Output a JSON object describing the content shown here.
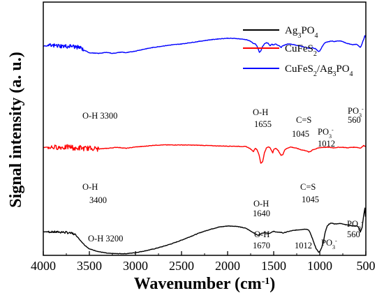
{
  "chart_data": {
    "type": "line",
    "xlabel": "Wavenumber",
    "xlabel_unit": "(cm",
    "xlabel_unit_sup": "-1",
    "xlabel_unit_close": ")",
    "ylabel": "Signal intensity  (a. u.)",
    "xlim": [
      4000,
      500
    ],
    "x_ticks": [
      4000,
      3500,
      3000,
      2500,
      2000,
      1500,
      1000,
      500
    ],
    "y_ticks_shown": false,
    "grid": false,
    "legend_position": "top-right",
    "series": [
      {
        "name": "Ag3PO4",
        "color": "#000000",
        "points": [
          [
            4000,
            0.5
          ],
          [
            3800,
            0.498
          ],
          [
            3700,
            0.492
          ],
          [
            3650,
            0.482
          ],
          [
            3600,
            0.45
          ],
          [
            3550,
            0.42
          ],
          [
            3500,
            0.398
          ],
          [
            3400,
            0.382
          ],
          [
            3300,
            0.372
          ],
          [
            3200,
            0.37
          ],
          [
            3100,
            0.37
          ],
          [
            3000,
            0.376
          ],
          [
            2900,
            0.386
          ],
          [
            2800,
            0.398
          ],
          [
            2700,
            0.413
          ],
          [
            2600,
            0.43
          ],
          [
            2500,
            0.45
          ],
          [
            2400,
            0.472
          ],
          [
            2300,
            0.494
          ],
          [
            2200,
            0.512
          ],
          [
            2100,
            0.527
          ],
          [
            2000,
            0.534
          ],
          [
            1900,
            0.532
          ],
          [
            1850,
            0.526
          ],
          [
            1800,
            0.52
          ],
          [
            1750,
            0.504
          ],
          [
            1700,
            0.488
          ],
          [
            1670,
            0.478
          ],
          [
            1640,
            0.488
          ],
          [
            1600,
            0.496
          ],
          [
            1550,
            0.49
          ],
          [
            1500,
            0.502
          ],
          [
            1450,
            0.496
          ],
          [
            1420,
            0.497
          ],
          [
            1400,
            0.492
          ],
          [
            1350,
            0.5
          ],
          [
            1300,
            0.506
          ],
          [
            1250,
            0.51
          ],
          [
            1200,
            0.513
          ],
          [
            1150,
            0.516
          ],
          [
            1120,
            0.51
          ],
          [
            1100,
            0.488
          ],
          [
            1080,
            0.46
          ],
          [
            1060,
            0.43
          ],
          [
            1040,
            0.4
          ],
          [
            1020,
            0.385
          ],
          [
            1012,
            0.378
          ],
          [
            1000,
            0.382
          ],
          [
            980,
            0.404
          ],
          [
            960,
            0.44
          ],
          [
            940,
            0.5
          ],
          [
            920,
            0.532
          ],
          [
            900,
            0.545
          ],
          [
            880,
            0.55
          ],
          [
            860,
            0.55
          ],
          [
            840,
            0.546
          ],
          [
            800,
            0.548
          ],
          [
            760,
            0.548
          ],
          [
            720,
            0.542
          ],
          [
            680,
            0.538
          ],
          [
            640,
            0.534
          ],
          [
            600,
            0.535
          ],
          [
            580,
            0.526
          ],
          [
            570,
            0.512
          ],
          [
            560,
            0.498
          ],
          [
            550,
            0.51
          ],
          [
            540,
            0.525
          ],
          [
            530,
            0.57
          ],
          [
            520,
            0.61
          ],
          [
            510,
            0.64
          ],
          [
            505,
            0.59
          ],
          [
            500,
            0.6
          ]
        ]
      },
      {
        "name": "CuFeS2",
        "color": "#ff0000",
        "points": [
          [
            4000,
            1.0
          ],
          [
            3850,
            1.0
          ],
          [
            3750,
            1.0
          ],
          [
            3700,
            1.003
          ],
          [
            3650,
            0.99
          ],
          [
            3600,
            0.998
          ],
          [
            3550,
            0.992
          ],
          [
            3500,
            0.996
          ],
          [
            3400,
            0.99
          ],
          [
            3300,
            0.994
          ],
          [
            3200,
            1.0
          ],
          [
            3100,
            0.994
          ],
          [
            3000,
            1.002
          ],
          [
            2900,
            1.006
          ],
          [
            2800,
            1.012
          ],
          [
            2700,
            1.014
          ],
          [
            2500,
            1.014
          ],
          [
            2300,
            1.012
          ],
          [
            2100,
            1.008
          ],
          [
            1900,
            1.006
          ],
          [
            1800,
            1.004
          ],
          [
            1760,
            0.994
          ],
          [
            1720,
            0.975
          ],
          [
            1700,
            0.995
          ],
          [
            1680,
            0.985
          ],
          [
            1660,
            0.958
          ],
          [
            1640,
            0.905
          ],
          [
            1620,
            0.915
          ],
          [
            1600,
            0.968
          ],
          [
            1580,
            0.995
          ],
          [
            1560,
            1.002
          ],
          [
            1540,
            0.998
          ],
          [
            1510,
            0.968
          ],
          [
            1500,
            0.985
          ],
          [
            1480,
            0.995
          ],
          [
            1450,
            0.98
          ],
          [
            1420,
            0.952
          ],
          [
            1400,
            0.958
          ],
          [
            1380,
            0.985
          ],
          [
            1350,
            0.995
          ],
          [
            1320,
            1.002
          ],
          [
            1300,
            1.0
          ],
          [
            1250,
            0.994
          ],
          [
            1200,
            0.985
          ],
          [
            1150,
            0.98
          ],
          [
            1120,
            0.972
          ],
          [
            1100,
            0.975
          ],
          [
            1080,
            0.985
          ],
          [
            1045,
            0.99
          ],
          [
            1020,
            0.995
          ],
          [
            1000,
            0.998
          ],
          [
            950,
            1.0
          ],
          [
            900,
            1.0
          ],
          [
            850,
            0.997
          ],
          [
            800,
            1.0
          ],
          [
            750,
            1.0
          ],
          [
            700,
            0.997
          ],
          [
            650,
            1.0
          ],
          [
            600,
            1.0
          ],
          [
            560,
            0.995
          ],
          [
            540,
            1.003
          ],
          [
            520,
            1.012
          ],
          [
            510,
            1.005
          ],
          [
            500,
            1.008
          ]
        ]
      },
      {
        "name": "CuFeS2/Ag3PO4",
        "color": "#0000ff",
        "points": [
          [
            4000,
            1.6
          ],
          [
            3850,
            1.602
          ],
          [
            3750,
            1.597
          ],
          [
            3700,
            1.6
          ],
          [
            3650,
            1.595
          ],
          [
            3600,
            1.59
          ],
          [
            3550,
            1.573
          ],
          [
            3500,
            1.56
          ],
          [
            3450,
            1.558
          ],
          [
            3400,
            1.556
          ],
          [
            3350,
            1.56
          ],
          [
            3300,
            1.562
          ],
          [
            3250,
            1.556
          ],
          [
            3200,
            1.56
          ],
          [
            3150,
            1.564
          ],
          [
            3100,
            1.56
          ],
          [
            3000,
            1.57
          ],
          [
            2900,
            1.582
          ],
          [
            2800,
            1.592
          ],
          [
            2700,
            1.6
          ],
          [
            2600,
            1.607
          ],
          [
            2500,
            1.612
          ],
          [
            2400,
            1.62
          ],
          [
            2300,
            1.628
          ],
          [
            2200,
            1.636
          ],
          [
            2100,
            1.642
          ],
          [
            2000,
            1.646
          ],
          [
            1900,
            1.644
          ],
          [
            1800,
            1.638
          ],
          [
            1750,
            1.628
          ],
          [
            1720,
            1.615
          ],
          [
            1700,
            1.612
          ],
          [
            1680,
            1.598
          ],
          [
            1660,
            1.57
          ],
          [
            1655,
            1.562
          ],
          [
            1640,
            1.57
          ],
          [
            1620,
            1.598
          ],
          [
            1600,
            1.612
          ],
          [
            1580,
            1.62
          ],
          [
            1560,
            1.616
          ],
          [
            1540,
            1.602
          ],
          [
            1520,
            1.61
          ],
          [
            1500,
            1.605
          ],
          [
            1480,
            1.612
          ],
          [
            1460,
            1.606
          ],
          [
            1440,
            1.602
          ],
          [
            1420,
            1.592
          ],
          [
            1400,
            1.602
          ],
          [
            1380,
            1.605
          ],
          [
            1350,
            1.612
          ],
          [
            1300,
            1.61
          ],
          [
            1250,
            1.604
          ],
          [
            1200,
            1.598
          ],
          [
            1150,
            1.592
          ],
          [
            1120,
            1.586
          ],
          [
            1100,
            1.586
          ],
          [
            1080,
            1.59
          ],
          [
            1045,
            1.584
          ],
          [
            1030,
            1.575
          ],
          [
            1012,
            1.567
          ],
          [
            1000,
            1.57
          ],
          [
            990,
            1.58
          ],
          [
            970,
            1.6
          ],
          [
            950,
            1.616
          ],
          [
            920,
            1.624
          ],
          [
            900,
            1.626
          ],
          [
            870,
            1.63
          ],
          [
            840,
            1.626
          ],
          [
            800,
            1.63
          ],
          [
            760,
            1.628
          ],
          [
            720,
            1.618
          ],
          [
            680,
            1.612
          ],
          [
            640,
            1.608
          ],
          [
            600,
            1.61
          ],
          [
            580,
            1.602
          ],
          [
            565,
            1.594
          ],
          [
            560,
            1.592
          ],
          [
            550,
            1.6
          ],
          [
            540,
            1.615
          ],
          [
            530,
            1.632
          ],
          [
            520,
            1.645
          ],
          [
            510,
            1.662
          ],
          [
            505,
            1.652
          ],
          [
            500,
            1.66
          ]
        ]
      }
    ],
    "noise": [
      {
        "series": 2,
        "from": 3950,
        "to": 3560,
        "amp": 0.012
      },
      {
        "series": 1,
        "from": 3950,
        "to": 3400,
        "amp": 0.014
      },
      {
        "series": 0,
        "from": 3950,
        "to": 3650,
        "amp": 0.006
      }
    ],
    "annotations": [
      {
        "series": 2,
        "text": "O-H 3300"
      },
      {
        "series": 2,
        "text": "O-H"
      },
      {
        "series": 2,
        "text": "1655"
      },
      {
        "series": 2,
        "text": "C=S"
      },
      {
        "series": 2,
        "text": "1045"
      },
      {
        "series": 2,
        "text": "PO3-"
      },
      {
        "series": 2,
        "text": "1012"
      },
      {
        "series": 2,
        "text": "PO3-"
      },
      {
        "series": 2,
        "text": "560"
      },
      {
        "series": 1,
        "text": "O-H"
      },
      {
        "series": 1,
        "text": "3400"
      },
      {
        "series": 1,
        "text": "O-H"
      },
      {
        "series": 1,
        "text": "1640"
      },
      {
        "series": 1,
        "text": "C=S"
      },
      {
        "series": 1,
        "text": "1045"
      },
      {
        "series": 0,
        "text": "O-H 3200"
      },
      {
        "series": 0,
        "text": "O-H"
      },
      {
        "series": 0,
        "text": "1670"
      },
      {
        "series": 0,
        "text": "1012"
      },
      {
        "series": 0,
        "text": "PO3-"
      },
      {
        "series": 0,
        "text": "PO3-"
      },
      {
        "series": 0,
        "text": "560"
      }
    ]
  }
}
